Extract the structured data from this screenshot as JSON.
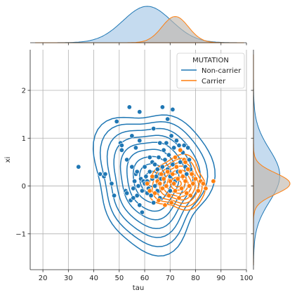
{
  "chart_data": {
    "type": "scatter",
    "title": "",
    "xlabel": "tau",
    "ylabel": "xi",
    "xlim": [
      15,
      100
    ],
    "ylim": [
      -1.75,
      2.85
    ],
    "xticks": [
      "20",
      "30",
      "40",
      "50",
      "60",
      "70",
      "80",
      "90",
      "100"
    ],
    "yticks": [
      "−1",
      "0",
      "1",
      "2"
    ],
    "grid": true,
    "legend": {
      "title": "MUTATION",
      "placement": "top-right",
      "entries": [
        "Non-carrier",
        "Carrier"
      ]
    },
    "colors": {
      "Non-carrier": "#1f77b4",
      "Carrier": "#ff7f0e",
      "Non-carrier_fill": "#a6c8e6",
      "Carrier_fill": "#c2b9ae"
    },
    "series": [
      {
        "name": "Non-carrier",
        "points": [
          [
            34,
            0.4
          ],
          [
            42.5,
            0.25
          ],
          [
            44,
            0.2
          ],
          [
            44.5,
            0.25
          ],
          [
            47,
            0.05
          ],
          [
            48,
            -0.2
          ],
          [
            49,
            1.35
          ],
          [
            50.5,
            0.9
          ],
          [
            51,
            0.75
          ],
          [
            51,
            0.85
          ],
          [
            52.5,
            -0.1
          ],
          [
            53,
            -0.15
          ],
          [
            53,
            0.55
          ],
          [
            54,
            1.65
          ],
          [
            54.5,
            -0.3
          ],
          [
            55,
            0.4
          ],
          [
            55,
            1.05
          ],
          [
            55.5,
            -0.05
          ],
          [
            55.5,
            -0.25
          ],
          [
            56,
            0.1
          ],
          [
            56.5,
            0.25
          ],
          [
            56.5,
            0.8
          ],
          [
            57,
            -0.2
          ],
          [
            57,
            0.3
          ],
          [
            57.5,
            0.0
          ],
          [
            58,
            -0.4
          ],
          [
            58,
            0.95
          ],
          [
            58,
            1.55
          ],
          [
            58.5,
            0.15
          ],
          [
            59,
            -0.1
          ],
          [
            59.5,
            0.1
          ],
          [
            60,
            0.05
          ],
          [
            60,
            0.4
          ],
          [
            60.5,
            0.2
          ],
          [
            61,
            -0.15
          ],
          [
            61,
            0.1
          ],
          [
            61.5,
            -0.05
          ],
          [
            62,
            0.6
          ],
          [
            62,
            0.3
          ],
          [
            62.5,
            -0.2
          ],
          [
            63,
            0.15
          ],
          [
            63,
            0.5
          ],
          [
            63.5,
            1.2
          ],
          [
            63.5,
            -0.35
          ],
          [
            64,
            0.0
          ],
          [
            64,
            0.45
          ],
          [
            64.5,
            0.2
          ],
          [
            65,
            -0.1
          ],
          [
            65,
            0.35
          ],
          [
            65.5,
            0.6
          ],
          [
            66,
            0.25
          ],
          [
            66,
            -0.25
          ],
          [
            66.5,
            0.15
          ],
          [
            67,
            0.4
          ],
          [
            67,
            1.65
          ],
          [
            67.5,
            0.75
          ],
          [
            68,
            0.55
          ],
          [
            68,
            0.0
          ],
          [
            68.5,
            0.9
          ],
          [
            69,
            0.35
          ],
          [
            69,
            1.4
          ],
          [
            69.5,
            0.65
          ],
          [
            70,
            0.2
          ],
          [
            70,
            -0.1
          ],
          [
            70.5,
            1.05
          ],
          [
            71,
            0.45
          ],
          [
            71.5,
            0.8
          ],
          [
            72,
            0.1
          ],
          [
            72,
            0.6
          ],
          [
            72.5,
            0.95
          ],
          [
            73,
            0.3
          ],
          [
            73.5,
            0.85
          ],
          [
            74,
            0.5
          ],
          [
            75,
            0.7
          ],
          [
            75.5,
            0.85
          ],
          [
            76,
            0.4
          ],
          [
            76.5,
            0.25
          ],
          [
            77,
            0.8
          ],
          [
            77.5,
            0.55
          ],
          [
            78,
            0.35
          ],
          [
            71,
            1.6
          ],
          [
            66,
            0.9
          ],
          [
            59,
            -0.55
          ]
        ]
      },
      {
        "name": "Carrier",
        "points": [
          [
            61,
            0.05
          ],
          [
            62,
            -0.1
          ],
          [
            63,
            0.2
          ],
          [
            64,
            -0.15
          ],
          [
            65,
            0.1
          ],
          [
            65.5,
            -0.3
          ],
          [
            66,
            0.05
          ],
          [
            66.5,
            0.25
          ],
          [
            67,
            -0.05
          ],
          [
            67.5,
            0.15
          ],
          [
            68,
            -0.4
          ],
          [
            68.5,
            0.0
          ],
          [
            69,
            0.3
          ],
          [
            69.5,
            -0.2
          ],
          [
            70,
            0.1
          ],
          [
            70.5,
            -0.35
          ],
          [
            71,
            0.25
          ],
          [
            71.5,
            0.05
          ],
          [
            72,
            -0.1
          ],
          [
            72.5,
            0.4
          ],
          [
            73,
            0.15
          ],
          [
            73.5,
            -0.25
          ],
          [
            74,
            0.3
          ],
          [
            74.5,
            -0.05
          ],
          [
            75,
            0.2
          ],
          [
            75.5,
            0.55
          ],
          [
            76,
            0.1
          ],
          [
            76.5,
            -0.15
          ],
          [
            77,
            0.35
          ],
          [
            77.5,
            0.0
          ],
          [
            78,
            -0.2
          ],
          [
            78.5,
            0.25
          ],
          [
            79,
            0.05
          ],
          [
            80,
            0.15
          ],
          [
            81,
            -0.1
          ],
          [
            82,
            0.1
          ],
          [
            83,
            0.05
          ],
          [
            84,
            -0.05
          ],
          [
            87,
            0.1
          ],
          [
            74,
            0.75
          ],
          [
            76,
            0.5
          ],
          [
            72,
            0.6
          ]
        ]
      }
    ],
    "kde_contours": [
      {
        "name": "Non-carrier",
        "center": [
          63,
          0.15
        ],
        "spread": [
          23,
          1.45
        ],
        "rotation_deg": -8,
        "levels": 9
      },
      {
        "name": "Carrier",
        "center": [
          73,
          0.05
        ],
        "spread": [
          11,
          0.55
        ],
        "rotation_deg": 0,
        "levels": 8
      }
    ],
    "marginal_x": [
      {
        "name": "Non-carrier",
        "mean": 61,
        "sd": 9.5,
        "peak": 1.0
      },
      {
        "name": "Carrier",
        "mean": 72,
        "sd": 5.2,
        "peak": 0.72
      }
    ],
    "marginal_y": [
      {
        "name": "Non-carrier",
        "mean": 0.22,
        "sd": 0.55,
        "peak": 0.72
      },
      {
        "name": "Carrier",
        "mean": 0.05,
        "sd": 0.22,
        "peak": 1.0
      }
    ]
  }
}
